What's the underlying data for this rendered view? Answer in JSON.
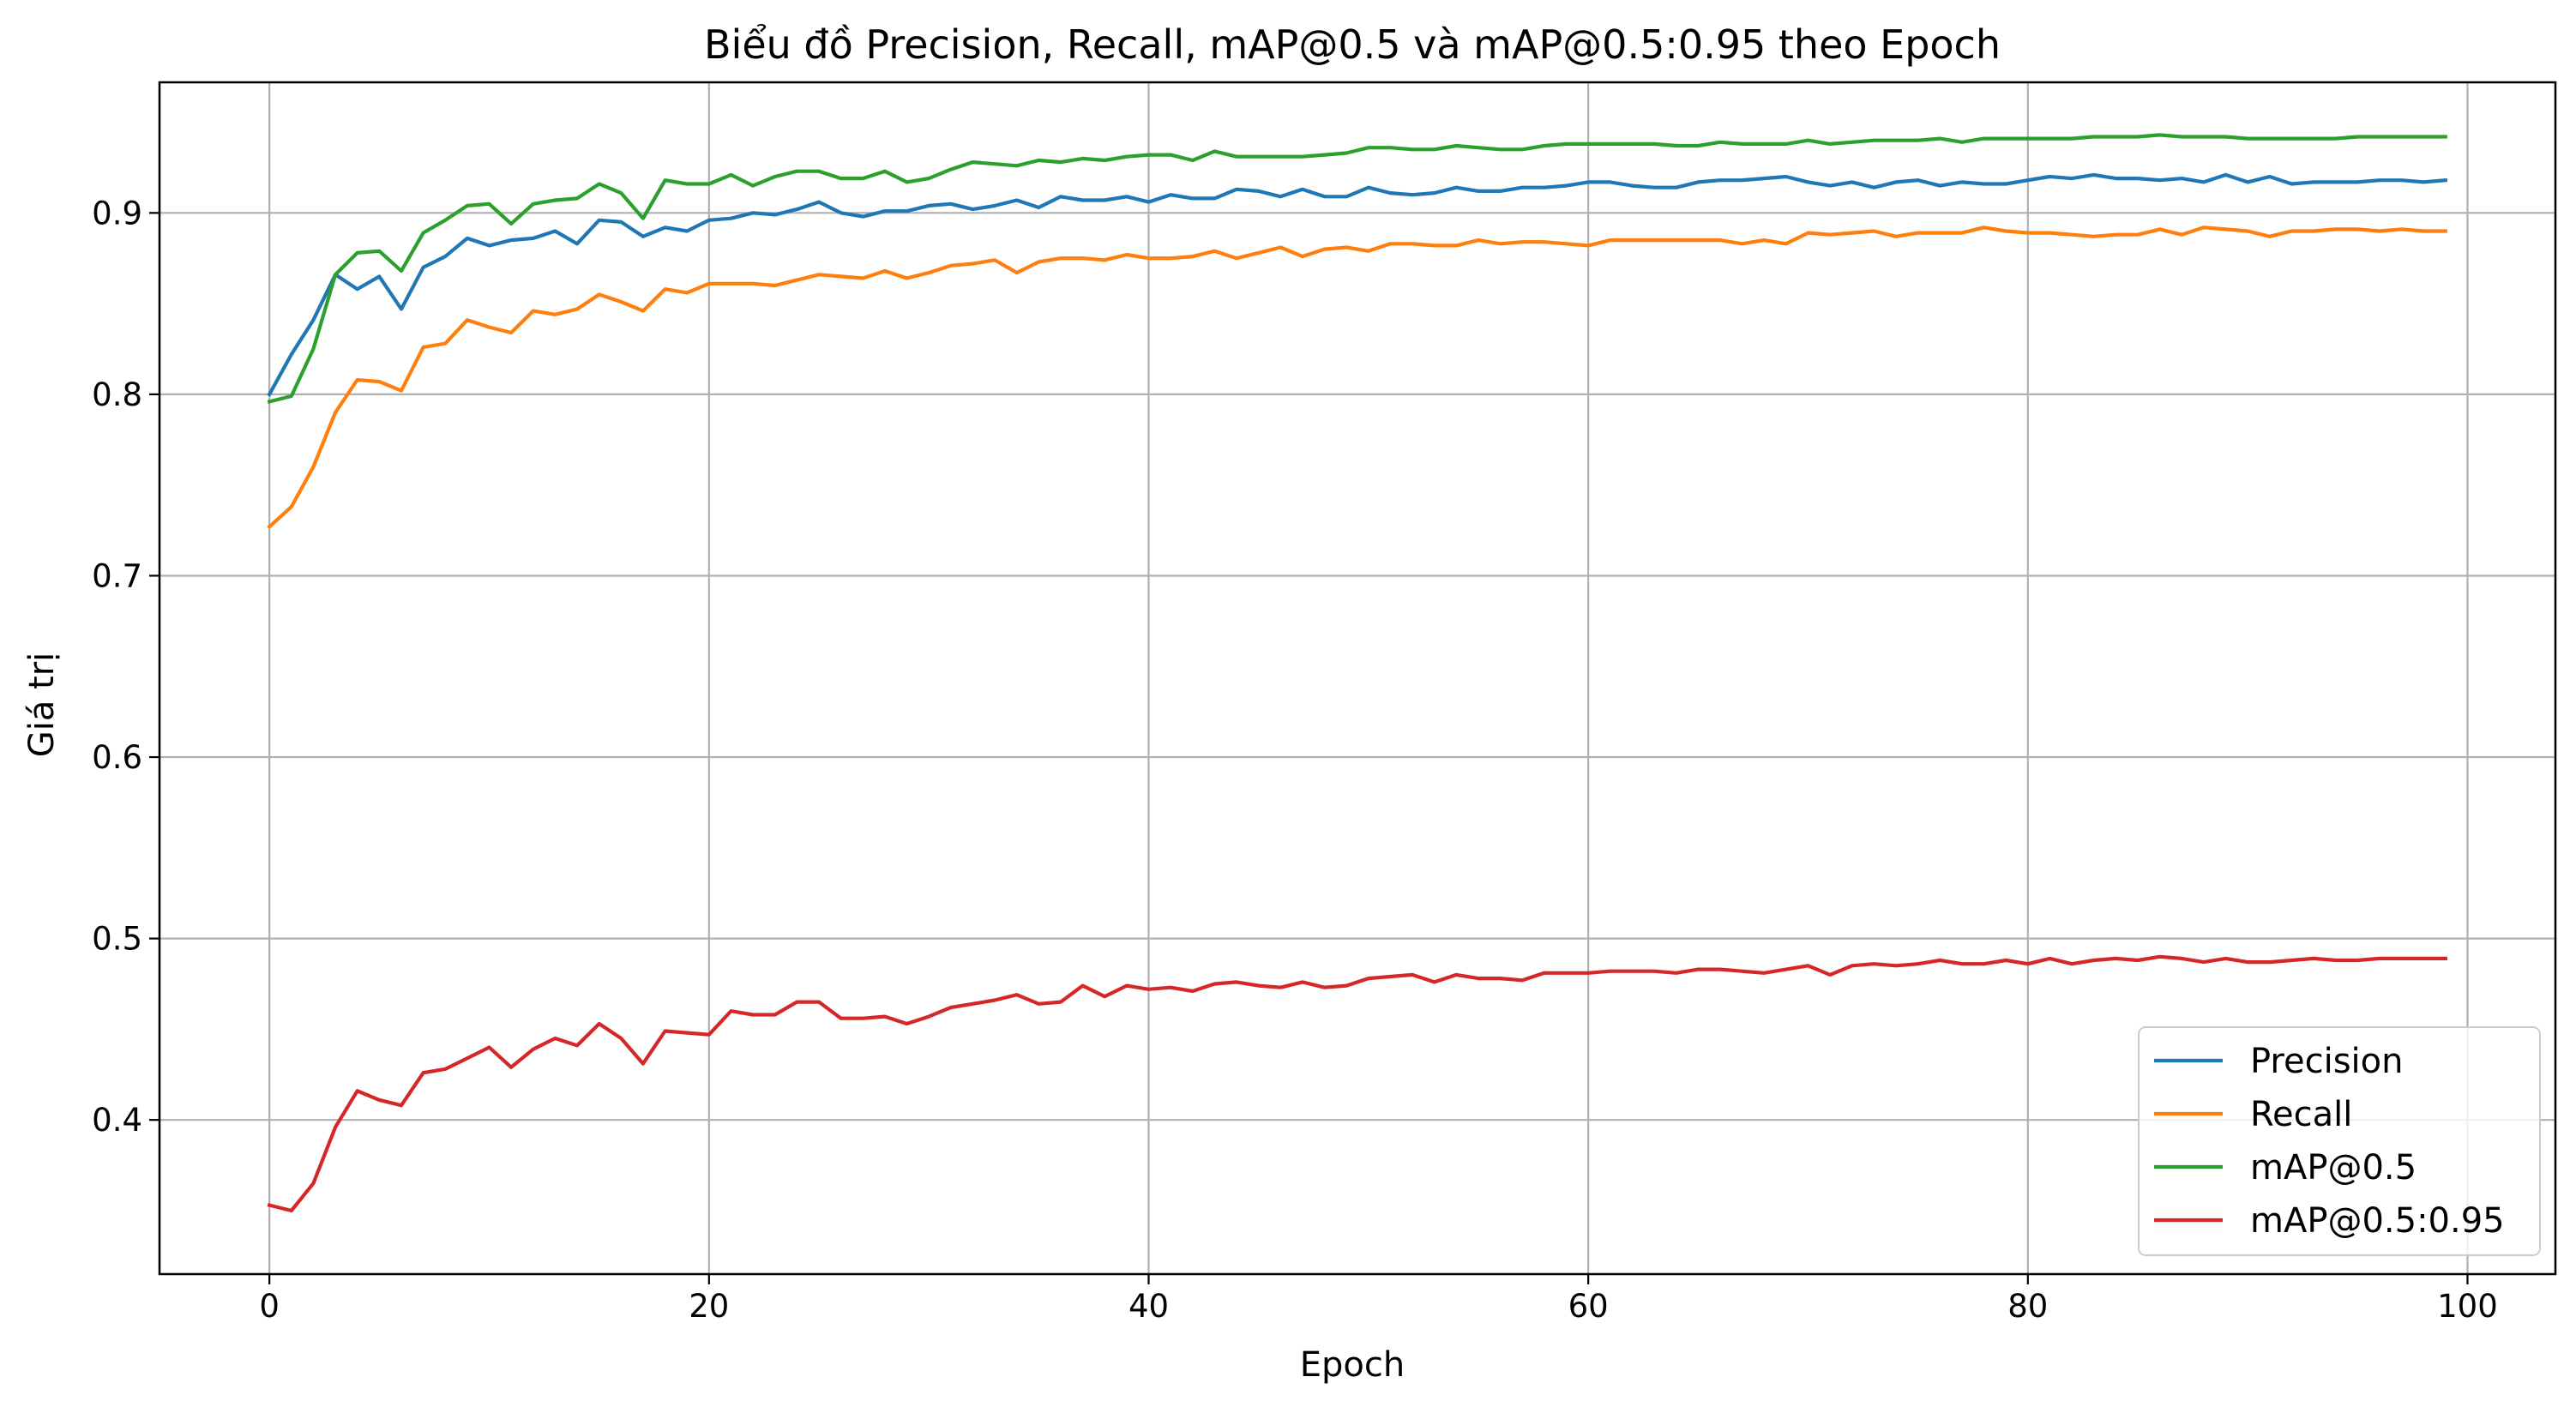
{
  "chart_data": {
    "type": "line",
    "title": "Biểu đồ Precision, Recall, mAP@0.5 và mAP@0.5:0.95 theo Epoch",
    "xlabel": "Epoch",
    "ylabel": "Giá trị",
    "xlim": [
      -5,
      104
    ],
    "ylim": [
      0.315,
      0.972
    ],
    "xticks": [
      0,
      20,
      40,
      60,
      80,
      100
    ],
    "yticks": [
      0.4,
      0.5,
      0.6,
      0.7,
      0.8,
      0.9
    ],
    "grid": true,
    "legend_position": "lower-right",
    "series": [
      {
        "name": "Precision",
        "color": "#1f77b4",
        "x": [
          0,
          1,
          2,
          3,
          4,
          5,
          6,
          7,
          8,
          9,
          10,
          11,
          12,
          13,
          14,
          15,
          16,
          17,
          18,
          19,
          20,
          21,
          22,
          23,
          24,
          25,
          26,
          27,
          28,
          29,
          30,
          31,
          32,
          33,
          34,
          35,
          36,
          37,
          38,
          39,
          40,
          41,
          42,
          43,
          44,
          45,
          46,
          47,
          48,
          49,
          50,
          51,
          52,
          53,
          54,
          55,
          56,
          57,
          58,
          59,
          60,
          61,
          62,
          63,
          64,
          65,
          66,
          67,
          68,
          69,
          70,
          71,
          72,
          73,
          74,
          75,
          76,
          77,
          78,
          79,
          80,
          81,
          82,
          83,
          84,
          85,
          86,
          87,
          88,
          89,
          90,
          91,
          92,
          93,
          94,
          95,
          96,
          97,
          98,
          99
        ],
        "y": [
          0.8,
          0.822,
          0.841,
          0.866,
          0.858,
          0.865,
          0.847,
          0.87,
          0.876,
          0.886,
          0.882,
          0.885,
          0.886,
          0.89,
          0.883,
          0.896,
          0.895,
          0.887,
          0.892,
          0.89,
          0.896,
          0.897,
          0.9,
          0.899,
          0.902,
          0.906,
          0.9,
          0.898,
          0.901,
          0.901,
          0.904,
          0.905,
          0.902,
          0.904,
          0.907,
          0.903,
          0.909,
          0.907,
          0.907,
          0.909,
          0.906,
          0.91,
          0.908,
          0.908,
          0.913,
          0.912,
          0.909,
          0.913,
          0.909,
          0.909,
          0.914,
          0.911,
          0.91,
          0.911,
          0.914,
          0.912,
          0.912,
          0.914,
          0.914,
          0.915,
          0.917,
          0.917,
          0.915,
          0.914,
          0.914,
          0.917,
          0.918,
          0.918,
          0.919,
          0.92,
          0.917,
          0.915,
          0.917,
          0.914,
          0.917,
          0.918,
          0.915,
          0.917,
          0.916,
          0.916,
          0.918,
          0.92,
          0.919,
          0.921,
          0.919,
          0.919,
          0.918,
          0.919,
          0.917,
          0.921,
          0.917,
          0.92,
          0.916,
          0.917,
          0.917,
          0.917,
          0.918,
          0.918,
          0.917,
          0.918
        ]
      },
      {
        "name": "Recall",
        "color": "#ff7f0e",
        "x": [
          0,
          1,
          2,
          3,
          4,
          5,
          6,
          7,
          8,
          9,
          10,
          11,
          12,
          13,
          14,
          15,
          16,
          17,
          18,
          19,
          20,
          21,
          22,
          23,
          24,
          25,
          26,
          27,
          28,
          29,
          30,
          31,
          32,
          33,
          34,
          35,
          36,
          37,
          38,
          39,
          40,
          41,
          42,
          43,
          44,
          45,
          46,
          47,
          48,
          49,
          50,
          51,
          52,
          53,
          54,
          55,
          56,
          57,
          58,
          59,
          60,
          61,
          62,
          63,
          64,
          65,
          66,
          67,
          68,
          69,
          70,
          71,
          72,
          73,
          74,
          75,
          76,
          77,
          78,
          79,
          80,
          81,
          82,
          83,
          84,
          85,
          86,
          87,
          88,
          89,
          90,
          91,
          92,
          93,
          94,
          95,
          96,
          97,
          98,
          99
        ],
        "y": [
          0.727,
          0.738,
          0.76,
          0.79,
          0.808,
          0.807,
          0.802,
          0.826,
          0.828,
          0.841,
          0.837,
          0.834,
          0.846,
          0.844,
          0.847,
          0.855,
          0.851,
          0.846,
          0.858,
          0.856,
          0.861,
          0.861,
          0.861,
          0.86,
          0.863,
          0.866,
          0.865,
          0.864,
          0.868,
          0.864,
          0.867,
          0.871,
          0.872,
          0.874,
          0.867,
          0.873,
          0.875,
          0.875,
          0.874,
          0.877,
          0.875,
          0.875,
          0.876,
          0.879,
          0.875,
          0.878,
          0.881,
          0.876,
          0.88,
          0.881,
          0.879,
          0.883,
          0.883,
          0.882,
          0.882,
          0.885,
          0.883,
          0.884,
          0.884,
          0.883,
          0.882,
          0.885,
          0.885,
          0.885,
          0.885,
          0.885,
          0.885,
          0.883,
          0.885,
          0.883,
          0.889,
          0.888,
          0.889,
          0.89,
          0.887,
          0.889,
          0.889,
          0.889,
          0.892,
          0.89,
          0.889,
          0.889,
          0.888,
          0.887,
          0.888,
          0.888,
          0.891,
          0.888,
          0.892,
          0.891,
          0.89,
          0.887,
          0.89,
          0.89,
          0.891,
          0.891,
          0.89,
          0.891,
          0.89,
          0.89
        ]
      },
      {
        "name": "mAP@0.5",
        "color": "#2ca02c",
        "x": [
          0,
          1,
          2,
          3,
          4,
          5,
          6,
          7,
          8,
          9,
          10,
          11,
          12,
          13,
          14,
          15,
          16,
          17,
          18,
          19,
          20,
          21,
          22,
          23,
          24,
          25,
          26,
          27,
          28,
          29,
          30,
          31,
          32,
          33,
          34,
          35,
          36,
          37,
          38,
          39,
          40,
          41,
          42,
          43,
          44,
          45,
          46,
          47,
          48,
          49,
          50,
          51,
          52,
          53,
          54,
          55,
          56,
          57,
          58,
          59,
          60,
          61,
          62,
          63,
          64,
          65,
          66,
          67,
          68,
          69,
          70,
          71,
          72,
          73,
          74,
          75,
          76,
          77,
          78,
          79,
          80,
          81,
          82,
          83,
          84,
          85,
          86,
          87,
          88,
          89,
          90,
          91,
          92,
          93,
          94,
          95,
          96,
          97,
          98,
          99
        ],
        "y": [
          0.796,
          0.799,
          0.825,
          0.866,
          0.878,
          0.879,
          0.868,
          0.889,
          0.896,
          0.904,
          0.905,
          0.894,
          0.905,
          0.907,
          0.908,
          0.916,
          0.911,
          0.897,
          0.918,
          0.916,
          0.916,
          0.921,
          0.915,
          0.92,
          0.923,
          0.923,
          0.919,
          0.919,
          0.923,
          0.917,
          0.919,
          0.924,
          0.928,
          0.927,
          0.926,
          0.929,
          0.928,
          0.93,
          0.929,
          0.931,
          0.932,
          0.932,
          0.929,
          0.934,
          0.931,
          0.931,
          0.931,
          0.931,
          0.932,
          0.933,
          0.936,
          0.936,
          0.935,
          0.935,
          0.937,
          0.936,
          0.935,
          0.935,
          0.937,
          0.938,
          0.938,
          0.938,
          0.938,
          0.938,
          0.937,
          0.937,
          0.939,
          0.938,
          0.938,
          0.938,
          0.94,
          0.938,
          0.939,
          0.94,
          0.94,
          0.94,
          0.941,
          0.939,
          0.941,
          0.941,
          0.941,
          0.941,
          0.941,
          0.942,
          0.942,
          0.942,
          0.943,
          0.942,
          0.942,
          0.942,
          0.941,
          0.941,
          0.941,
          0.941,
          0.941,
          0.942,
          0.942,
          0.942,
          0.942,
          0.942
        ]
      },
      {
        "name": "mAP@0.5:0.95",
        "color": "#d62728",
        "x": [
          0,
          1,
          2,
          3,
          4,
          5,
          6,
          7,
          8,
          9,
          10,
          11,
          12,
          13,
          14,
          15,
          16,
          17,
          18,
          19,
          20,
          21,
          22,
          23,
          24,
          25,
          26,
          27,
          28,
          29,
          30,
          31,
          32,
          33,
          34,
          35,
          36,
          37,
          38,
          39,
          40,
          41,
          42,
          43,
          44,
          45,
          46,
          47,
          48,
          49,
          50,
          51,
          52,
          53,
          54,
          55,
          56,
          57,
          58,
          59,
          60,
          61,
          62,
          63,
          64,
          65,
          66,
          67,
          68,
          69,
          70,
          71,
          72,
          73,
          74,
          75,
          76,
          77,
          78,
          79,
          80,
          81,
          82,
          83,
          84,
          85,
          86,
          87,
          88,
          89,
          90,
          91,
          92,
          93,
          94,
          95,
          96,
          97,
          98,
          99
        ],
        "y": [
          0.353,
          0.35,
          0.365,
          0.396,
          0.416,
          0.411,
          0.408,
          0.426,
          0.428,
          0.434,
          0.44,
          0.429,
          0.439,
          0.445,
          0.441,
          0.453,
          0.445,
          0.431,
          0.449,
          0.448,
          0.447,
          0.46,
          0.458,
          0.458,
          0.465,
          0.465,
          0.456,
          0.456,
          0.457,
          0.453,
          0.457,
          0.462,
          0.464,
          0.466,
          0.469,
          0.464,
          0.465,
          0.474,
          0.468,
          0.474,
          0.472,
          0.473,
          0.471,
          0.475,
          0.476,
          0.474,
          0.473,
          0.476,
          0.473,
          0.474,
          0.478,
          0.479,
          0.48,
          0.476,
          0.48,
          0.478,
          0.478,
          0.477,
          0.481,
          0.481,
          0.481,
          0.482,
          0.482,
          0.482,
          0.481,
          0.483,
          0.483,
          0.482,
          0.481,
          0.483,
          0.485,
          0.48,
          0.485,
          0.486,
          0.485,
          0.486,
          0.488,
          0.486,
          0.486,
          0.488,
          0.486,
          0.489,
          0.486,
          0.488,
          0.489,
          0.488,
          0.49,
          0.489,
          0.487,
          0.489,
          0.487,
          0.487,
          0.488,
          0.489,
          0.488,
          0.488,
          0.489,
          0.489,
          0.489,
          0.489
        ]
      }
    ]
  }
}
